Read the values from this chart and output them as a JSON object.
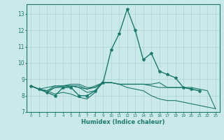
{
  "xlabel": "Humidex (Indice chaleur)",
  "xlim": [
    -0.5,
    23.5
  ],
  "ylim": [
    7,
    13.6
  ],
  "yticks": [
    7,
    8,
    9,
    10,
    11,
    12,
    13
  ],
  "xticks": [
    0,
    1,
    2,
    3,
    4,
    5,
    6,
    7,
    8,
    9,
    10,
    11,
    12,
    13,
    14,
    15,
    16,
    17,
    18,
    19,
    20,
    21,
    22,
    23
  ],
  "bg_color": "#cce9e9",
  "grid_color": "#aad4d4",
  "line_color": "#1a7a6e",
  "lines": [
    [
      8.6,
      8.4,
      8.2,
      8.0,
      8.5,
      8.5,
      8.0,
      8.0,
      8.3,
      8.8,
      10.8,
      11.8,
      13.3,
      12.0,
      10.2,
      10.6,
      9.5,
      9.3,
      9.1,
      8.5,
      8.4,
      8.3,
      null,
      null
    ],
    [
      8.6,
      8.4,
      8.2,
      8.5,
      8.5,
      8.6,
      8.5,
      8.2,
      8.3,
      8.9,
      null,
      null,
      null,
      null,
      null,
      null,
      null,
      null,
      null,
      null,
      null,
      null,
      null,
      null
    ],
    [
      8.6,
      8.4,
      8.3,
      8.5,
      8.6,
      8.6,
      8.6,
      8.4,
      8.6,
      8.8,
      8.8,
      8.7,
      8.7,
      8.7,
      8.7,
      8.7,
      8.8,
      8.5,
      8.5,
      8.5,
      8.4,
      8.3,
      null,
      null
    ],
    [
      8.6,
      8.4,
      8.3,
      8.1,
      8.2,
      8.1,
      7.9,
      7.8,
      8.2,
      8.9,
      null,
      null,
      null,
      null,
      null,
      null,
      null,
      null,
      null,
      null,
      null,
      null,
      null,
      null
    ],
    [
      8.6,
      8.4,
      8.3,
      8.6,
      8.6,
      8.7,
      8.7,
      8.5,
      8.5,
      8.8,
      8.8,
      8.7,
      8.7,
      8.7,
      8.7,
      8.6,
      8.5,
      8.5,
      8.5,
      8.5,
      8.5,
      8.4,
      8.3,
      7.2
    ],
    [
      8.6,
      8.4,
      8.5,
      8.6,
      8.6,
      8.6,
      8.5,
      8.4,
      8.5,
      8.8,
      8.8,
      8.7,
      8.5,
      8.4,
      8.3,
      8.0,
      7.8,
      7.7,
      7.7,
      7.6,
      7.5,
      7.4,
      7.3,
      7.2
    ]
  ]
}
